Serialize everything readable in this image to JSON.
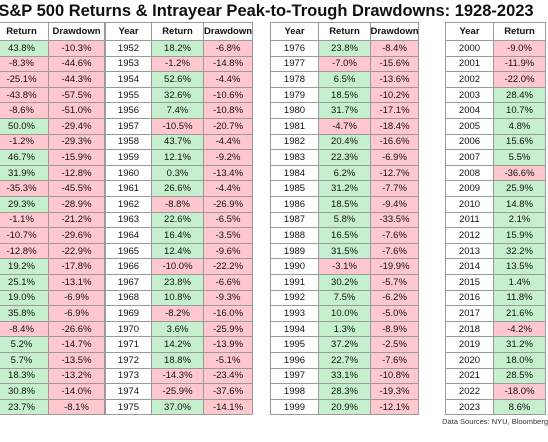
{
  "title": "S&P 500 Returns & Intrayear Peak-to-Trough Drawdowns: 1928-2023",
  "source": "Data Sources: NYU, Bloomberg",
  "tables": [
    {
      "columns": [
        "Return",
        "Drawdown"
      ],
      "rows": [
        [
          "43.8%",
          "-10.3%"
        ],
        [
          "-8.3%",
          "-44.6%"
        ],
        [
          "-25.1%",
          "-44.3%"
        ],
        [
          "-43.8%",
          "-57.5%"
        ],
        [
          "-8.6%",
          "-51.0%"
        ],
        [
          "50.0%",
          "-29.4%"
        ],
        [
          "-1.2%",
          "-29.3%"
        ],
        [
          "46.7%",
          "-15.9%"
        ],
        [
          "31.9%",
          "-12.8%"
        ],
        [
          "-35.3%",
          "-45.5%"
        ],
        [
          "29.3%",
          "-28.9%"
        ],
        [
          "-1.1%",
          "-21.2%"
        ],
        [
          "-10.7%",
          "-29.6%"
        ],
        [
          "-12.8%",
          "-22.9%"
        ],
        [
          "19.2%",
          "-17.8%"
        ],
        [
          "25.1%",
          "-13.1%"
        ],
        [
          "19.0%",
          "-6.9%"
        ],
        [
          "35.8%",
          "-6.9%"
        ],
        [
          "-8.4%",
          "-26.6%"
        ],
        [
          "5.2%",
          "-14.7%"
        ],
        [
          "5.7%",
          "-13.5%"
        ],
        [
          "18.3%",
          "-13.2%"
        ],
        [
          "30.8%",
          "-14.0%"
        ],
        [
          "23.7%",
          "-8.1%"
        ]
      ]
    },
    {
      "columns": [
        "Year",
        "Return",
        "Drawdown"
      ],
      "rows": [
        [
          "1952",
          "18.2%",
          "-6.8%"
        ],
        [
          "1953",
          "-1.2%",
          "-14.8%"
        ],
        [
          "1954",
          "52.6%",
          "-4.4%"
        ],
        [
          "1955",
          "32.6%",
          "-10.6%"
        ],
        [
          "1956",
          "7.4%",
          "-10.8%"
        ],
        [
          "1957",
          "-10.5%",
          "-20.7%"
        ],
        [
          "1958",
          "43.7%",
          "-4.4%"
        ],
        [
          "1959",
          "12.1%",
          "-9.2%"
        ],
        [
          "1960",
          "0.3%",
          "-13.4%"
        ],
        [
          "1961",
          "26.6%",
          "-4.4%"
        ],
        [
          "1962",
          "-8.8%",
          "-26.9%"
        ],
        [
          "1963",
          "22.6%",
          "-6.5%"
        ],
        [
          "1964",
          "16.4%",
          "-3.5%"
        ],
        [
          "1965",
          "12.4%",
          "-9.6%"
        ],
        [
          "1966",
          "-10.0%",
          "-22.2%"
        ],
        [
          "1967",
          "23.8%",
          "-6.6%"
        ],
        [
          "1968",
          "10.8%",
          "-9.3%"
        ],
        [
          "1969",
          "-8.2%",
          "-16.0%"
        ],
        [
          "1970",
          "3.6%",
          "-25.9%"
        ],
        [
          "1971",
          "14.2%",
          "-13.9%"
        ],
        [
          "1972",
          "18.8%",
          "-5.1%"
        ],
        [
          "1973",
          "-14.3%",
          "-23.4%"
        ],
        [
          "1974",
          "-25.9%",
          "-37.6%"
        ],
        [
          "1975",
          "37.0%",
          "-14.1%"
        ]
      ]
    },
    {
      "columns": [
        "Year",
        "Return",
        "Drawdown"
      ],
      "rows": [
        [
          "1976",
          "23.8%",
          "-8.4%"
        ],
        [
          "1977",
          "-7.0%",
          "-15.6%"
        ],
        [
          "1978",
          "6.5%",
          "-13.6%"
        ],
        [
          "1979",
          "18.5%",
          "-10.2%"
        ],
        [
          "1980",
          "31.7%",
          "-17.1%"
        ],
        [
          "1981",
          "-4.7%",
          "-18.4%"
        ],
        [
          "1982",
          "20.4%",
          "-16.6%"
        ],
        [
          "1983",
          "22.3%",
          "-6.9%"
        ],
        [
          "1984",
          "6.2%",
          "-12.7%"
        ],
        [
          "1985",
          "31.2%",
          "-7.7%"
        ],
        [
          "1986",
          "18.5%",
          "-9.4%"
        ],
        [
          "1987",
          "5.8%",
          "-33.5%"
        ],
        [
          "1988",
          "16.5%",
          "-7.6%"
        ],
        [
          "1989",
          "31.5%",
          "-7.6%"
        ],
        [
          "1990",
          "-3.1%",
          "-19.9%"
        ],
        [
          "1991",
          "30.2%",
          "-5.7%"
        ],
        [
          "1992",
          "7.5%",
          "-6.2%"
        ],
        [
          "1993",
          "10.0%",
          "-5.0%"
        ],
        [
          "1994",
          "1.3%",
          "-8.9%"
        ],
        [
          "1995",
          "37.2%",
          "-2.5%"
        ],
        [
          "1996",
          "22.7%",
          "-7.6%"
        ],
        [
          "1997",
          "33.1%",
          "-10.8%"
        ],
        [
          "1998",
          "28.3%",
          "-19.3%"
        ],
        [
          "1999",
          "20.9%",
          "-12.1%"
        ]
      ]
    },
    {
      "columns": [
        "Year",
        "Return"
      ],
      "rows": [
        [
          "2000",
          "-9.0%"
        ],
        [
          "2001",
          "-11.9%"
        ],
        [
          "2002",
          "-22.0%"
        ],
        [
          "2003",
          "28.4%"
        ],
        [
          "2004",
          "10.7%"
        ],
        [
          "2005",
          "4.8%"
        ],
        [
          "2006",
          "15.6%"
        ],
        [
          "2007",
          "5.5%"
        ],
        [
          "2008",
          "-36.6%"
        ],
        [
          "2009",
          "25.9%"
        ],
        [
          "2010",
          "14.8%"
        ],
        [
          "2011",
          "2.1%"
        ],
        [
          "2012",
          "15.9%"
        ],
        [
          "2013",
          "32.2%"
        ],
        [
          "2014",
          "13.5%"
        ],
        [
          "2015",
          "1.4%"
        ],
        [
          "2016",
          "11.8%"
        ],
        [
          "2017",
          "21.6%"
        ],
        [
          "2018",
          "-4.2%"
        ],
        [
          "2019",
          "31.2%"
        ],
        [
          "2020",
          "18.0%"
        ],
        [
          "2021",
          "28.5%"
        ],
        [
          "2022",
          "-18.0%"
        ],
        [
          "2023",
          "8.6%"
        ]
      ]
    }
  ]
}
